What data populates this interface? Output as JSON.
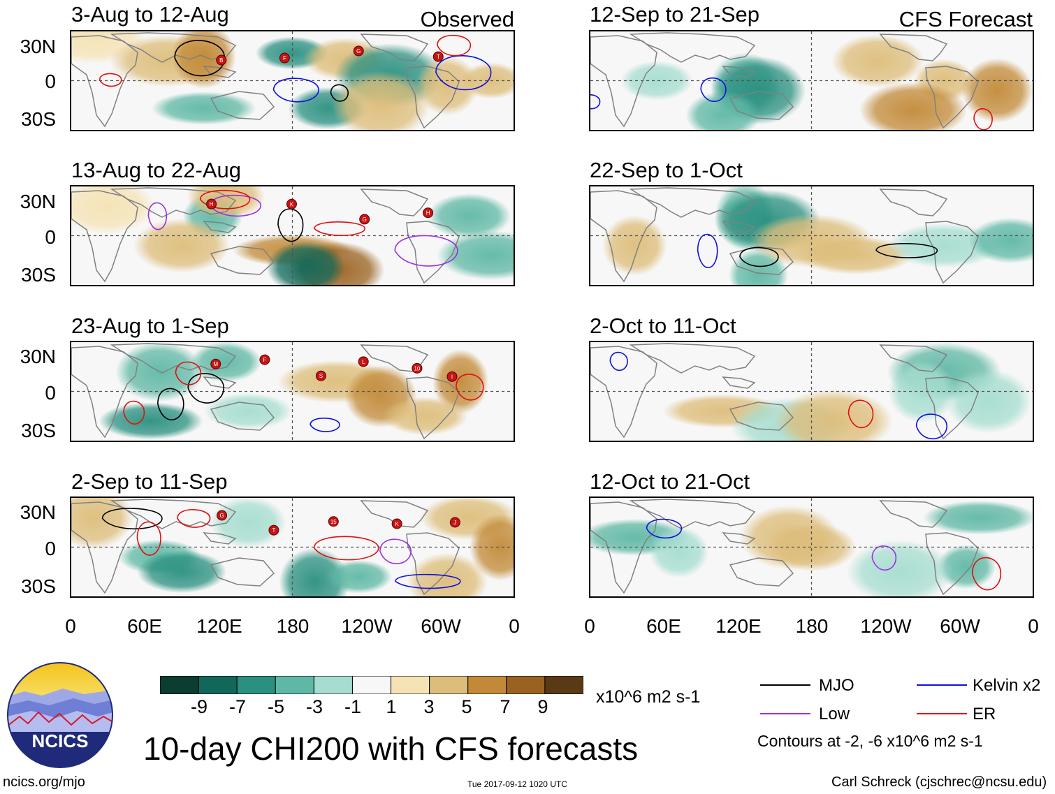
{
  "panels": {
    "observed": [
      {
        "title": "3-Aug to 12-Aug",
        "corner": "Observed"
      },
      {
        "title": "13-Aug to 22-Aug"
      },
      {
        "title": "23-Aug to 1-Sep"
      },
      {
        "title": "2-Sep to 11-Sep"
      }
    ],
    "forecast": [
      {
        "title": "12-Sep to 21-Sep",
        "corner": "CFS Forecast"
      },
      {
        "title": "22-Sep to 1-Oct"
      },
      {
        "title": "2-Oct to 11-Oct"
      },
      {
        "title": "12-Oct to 21-Oct"
      }
    ]
  },
  "chart_data": {
    "type": "heatmap",
    "title": "10-day CHI200 with CFS forecasts",
    "variable": "CHI200",
    "units": "x10^6 m2 s-1",
    "lat_ticks": [
      "30N",
      "0",
      "30S"
    ],
    "lon_ticks": [
      "0",
      "60E",
      "120E",
      "180",
      "120W",
      "60W",
      "0"
    ],
    "colorbar": {
      "ticks": [
        "-9",
        "-7",
        "-5",
        "-3",
        "-1",
        "1",
        "3",
        "5",
        "7",
        "9"
      ],
      "colors": [
        "#0b3d31",
        "#11685a",
        "#2a9080",
        "#5fb8a5",
        "#a6ddd0",
        "#f7f7f7",
        "#f5e3b5",
        "#ddbd7a",
        "#c28a38",
        "#9a6220",
        "#5a3a15"
      ]
    },
    "legend": [
      {
        "label": "MJO",
        "color": "#000000"
      },
      {
        "label": "Kelvin x2",
        "color": "#1010e0"
      },
      {
        "label": "Low",
        "color": "#9b30e0"
      },
      {
        "label": "ER",
        "color": "#e01010"
      }
    ],
    "contour_note": "Contours at -2, -6 x10^6 m2 s-1",
    "storm_markers": [
      [
        "B",
        "F",
        "G",
        "T"
      ],
      [
        "H",
        "K",
        "G",
        "H"
      ],
      [
        "M",
        "F",
        "S",
        "L",
        "10",
        "I"
      ],
      [
        "G",
        "T",
        "15",
        "K",
        "J"
      ]
    ]
  },
  "logo": {
    "text": "NCICS"
  },
  "footer": {
    "url": "ncics.org/mjo",
    "timestamp": "Tue 2017-09-12 1020 UTC",
    "author": "Carl Schreck (cjschrec@ncsu.edu)"
  }
}
